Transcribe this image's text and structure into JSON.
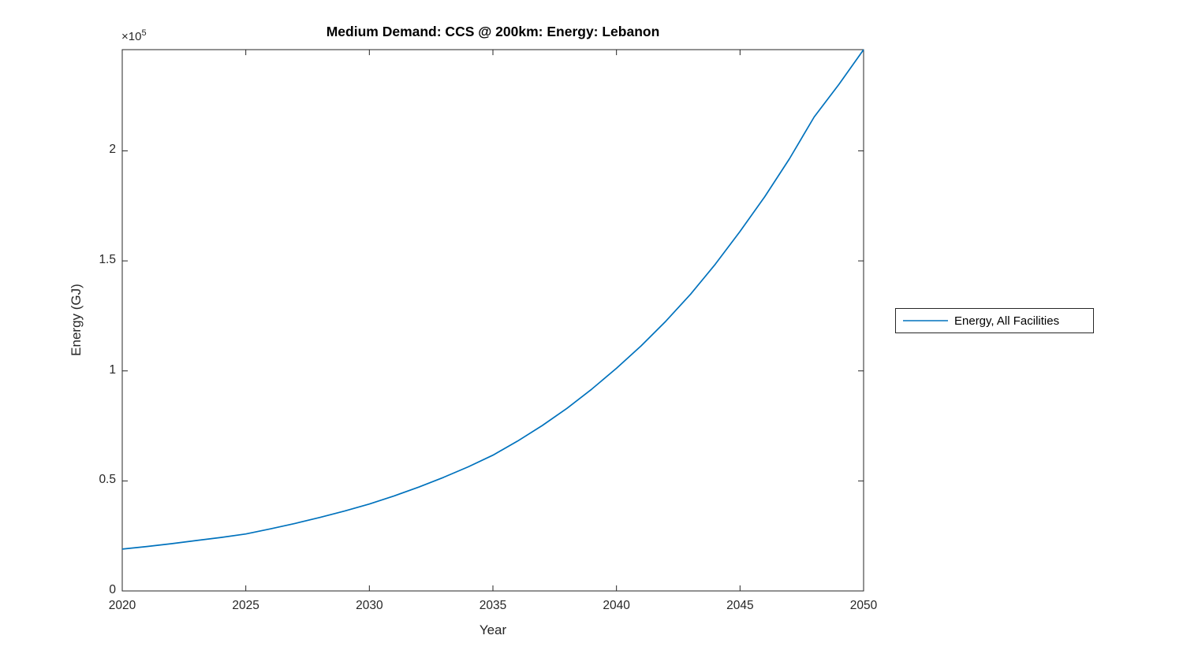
{
  "chart_data": {
    "type": "line",
    "title": "Medium Demand: CCS @ 200km: Energy: Lebanon",
    "xlabel": "Year",
    "ylabel": "Energy (GJ)",
    "y_exponent_base": "×10",
    "y_exponent_power": "5",
    "xlim": [
      2020,
      2050
    ],
    "ylim": [
      0,
      246000
    ],
    "grid": false,
    "box": true,
    "tick_direction": "in",
    "legend_position": "right-outside",
    "axis_color": "#262626",
    "line_color": "#0072BD",
    "background_color": "#ffffff",
    "xticks": [
      {
        "value": 2020,
        "label": "2020"
      },
      {
        "value": 2025,
        "label": "2025"
      },
      {
        "value": 2030,
        "label": "2030"
      },
      {
        "value": 2035,
        "label": "2035"
      },
      {
        "value": 2040,
        "label": "2040"
      },
      {
        "value": 2045,
        "label": "2045"
      },
      {
        "value": 2050,
        "label": "2050"
      }
    ],
    "yticks": [
      {
        "value": 0,
        "label": "0"
      },
      {
        "value": 50000,
        "label": "0.5"
      },
      {
        "value": 100000,
        "label": "1"
      },
      {
        "value": 150000,
        "label": "1.5"
      },
      {
        "value": 200000,
        "label": "2"
      }
    ],
    "series": [
      {
        "name": "Energy, All Facilities",
        "x": [
          2020,
          2021,
          2022,
          2023,
          2024,
          2025,
          2026,
          2027,
          2028,
          2029,
          2030,
          2031,
          2032,
          2033,
          2034,
          2035,
          2036,
          2037,
          2038,
          2039,
          2040,
          2041,
          2042,
          2043,
          2044,
          2045,
          2046,
          2047,
          2048,
          2049,
          2050
        ],
        "values": [
          19000,
          20200,
          21500,
          22900,
          24300,
          25900,
          28200,
          30700,
          33400,
          36300,
          39500,
          43200,
          47200,
          51600,
          56400,
          61700,
          68100,
          75200,
          83000,
          91700,
          101200,
          111400,
          122600,
          134900,
          148500,
          163400,
          179200,
          196400,
          215400,
          230200,
          246000
        ]
      }
    ]
  }
}
